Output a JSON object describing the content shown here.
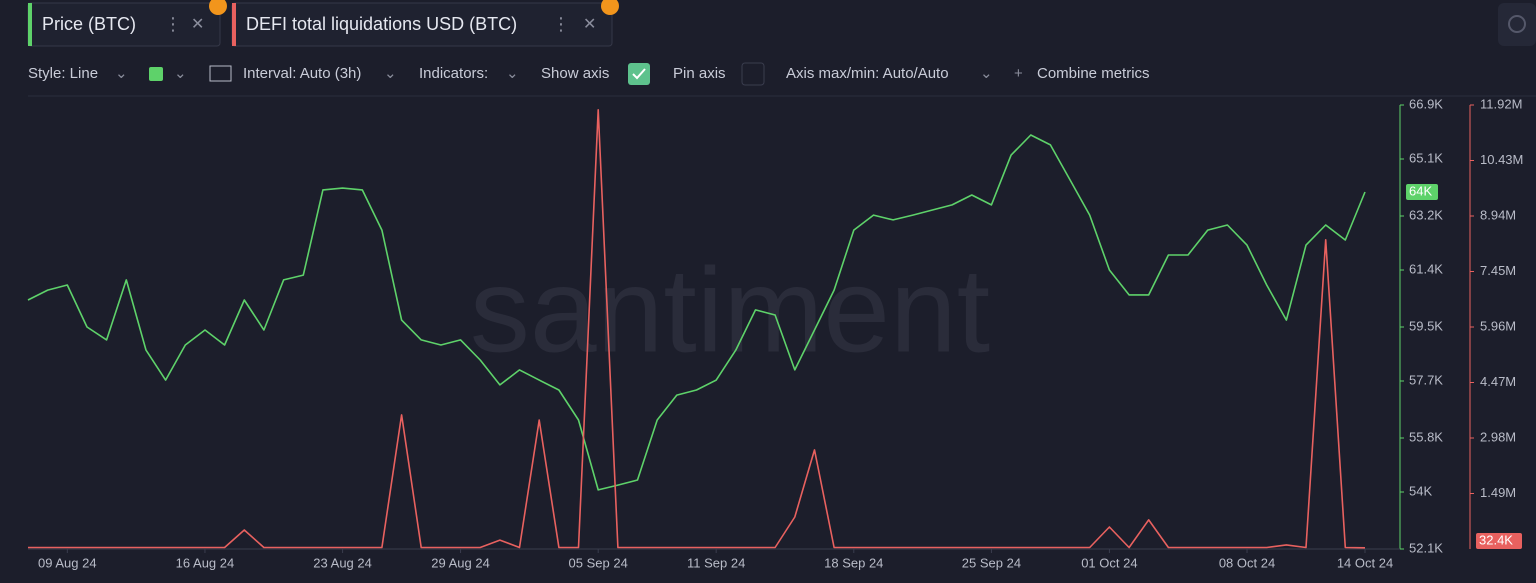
{
  "ui": {
    "toolbar": {
      "style": "Style: Line",
      "interval": "Interval: Auto (3h)",
      "indicators": "Indicators:",
      "show_axis": "Show axis",
      "pin_axis": "Pin axis",
      "axis_maxmin": "Axis max/min: Auto/Auto",
      "combine": "Combine metrics"
    },
    "watermark": "santiment"
  },
  "chart_data": {
    "type": "line",
    "x": [
      "2024-08-07",
      "2024-08-08",
      "2024-08-09",
      "2024-08-10",
      "2024-08-11",
      "2024-08-12",
      "2024-08-13",
      "2024-08-14",
      "2024-08-15",
      "2024-08-16",
      "2024-08-17",
      "2024-08-18",
      "2024-08-19",
      "2024-08-20",
      "2024-08-21",
      "2024-08-22",
      "2024-08-23",
      "2024-08-24",
      "2024-08-25",
      "2024-08-26",
      "2024-08-27",
      "2024-08-28",
      "2024-08-29",
      "2024-08-30",
      "2024-08-31",
      "2024-09-01",
      "2024-09-02",
      "2024-09-03",
      "2024-09-04",
      "2024-09-05",
      "2024-09-06",
      "2024-09-07",
      "2024-09-08",
      "2024-09-09",
      "2024-09-10",
      "2024-09-11",
      "2024-09-12",
      "2024-09-13",
      "2024-09-14",
      "2024-09-15",
      "2024-09-16",
      "2024-09-17",
      "2024-09-18",
      "2024-09-19",
      "2024-09-20",
      "2024-09-21",
      "2024-09-22",
      "2024-09-23",
      "2024-09-24",
      "2024-09-25",
      "2024-09-26",
      "2024-09-27",
      "2024-09-28",
      "2024-09-29",
      "2024-09-30",
      "2024-10-01",
      "2024-10-02",
      "2024-10-03",
      "2024-10-04",
      "2024-10-05",
      "2024-10-06",
      "2024-10-07",
      "2024-10-08",
      "2024-10-09",
      "2024-10-10",
      "2024-10-11",
      "2024-10-12",
      "2024-10-13",
      "2024-10-14"
    ],
    "xlim": [
      "2024-08-07",
      "2024-10-14"
    ],
    "xticks": [
      {
        "value": "2024-08-09",
        "label": "09 Aug 24"
      },
      {
        "value": "2024-08-16",
        "label": "16 Aug 24"
      },
      {
        "value": "2024-08-23",
        "label": "23 Aug 24"
      },
      {
        "value": "2024-08-29",
        "label": "29 Aug 24"
      },
      {
        "value": "2024-09-05",
        "label": "05 Sep 24"
      },
      {
        "value": "2024-09-11",
        "label": "11 Sep 24"
      },
      {
        "value": "2024-09-18",
        "label": "18 Sep 24"
      },
      {
        "value": "2024-09-25",
        "label": "25 Sep 24"
      },
      {
        "value": "2024-10-01",
        "label": "01 Oct 24"
      },
      {
        "value": "2024-10-08",
        "label": "08 Oct 24"
      },
      {
        "value": "2024-10-14",
        "label": "14 Oct 24"
      }
    ],
    "ylim": [
      52100,
      66900
    ],
    "yticks": [
      {
        "value": 52100,
        "label": "52.1K"
      },
      {
        "value": 54000,
        "label": "54K"
      },
      {
        "value": 55800,
        "label": "55.8K"
      },
      {
        "value": 57700,
        "label": "57.7K"
      },
      {
        "value": 59500,
        "label": "59.5K"
      },
      {
        "value": 61400,
        "label": "61.4K"
      },
      {
        "value": 63200,
        "label": "63.2K"
      },
      {
        "value": 65100,
        "label": "65.1K"
      },
      {
        "value": 66900,
        "label": "66.9K"
      }
    ],
    "y2lim": [
      0,
      11920000
    ],
    "y2ticks": [
      {
        "value": 1490000,
        "label": "1.49M"
      },
      {
        "value": 2980000,
        "label": "2.98M"
      },
      {
        "value": 4470000,
        "label": "4.47M"
      },
      {
        "value": 5960000,
        "label": "5.96M"
      },
      {
        "value": 7450000,
        "label": "7.45M"
      },
      {
        "value": 8940000,
        "label": "8.94M"
      },
      {
        "value": 10430000,
        "label": "10.43M"
      },
      {
        "value": 11920000,
        "label": "11.92M"
      }
    ],
    "series": [
      {
        "name": "Price (BTC)",
        "color": "#5ed26a",
        "axis": "y",
        "values": [
          60400,
          60730,
          60900,
          59500,
          59070,
          61070,
          58730,
          57730,
          58900,
          59400,
          58900,
          60400,
          59400,
          61070,
          61230,
          64070,
          64130,
          64070,
          62730,
          59730,
          59070,
          58900,
          59070,
          58400,
          57570,
          58070,
          57730,
          57400,
          56400,
          54070,
          54230,
          54400,
          56400,
          57230,
          57400,
          57730,
          58730,
          60070,
          59900,
          58070,
          59400,
          60730,
          62730,
          63230,
          63070,
          63230,
          63400,
          63570,
          63900,
          63570,
          65230,
          65900,
          65570,
          64400,
          63230,
          61400,
          60570,
          60570,
          61900,
          61900,
          62730,
          62900,
          62230,
          60900,
          59730,
          62230,
          62900,
          62400,
          64000
        ],
        "current": {
          "value": 64000,
          "label": "64K"
        }
      },
      {
        "name": "DEFI total liquidations USD (BTC)",
        "color": "#e8615f",
        "axis": "y2",
        "values": [
          40000,
          40000,
          40000,
          40000,
          40000,
          40000,
          40000,
          40000,
          40000,
          40000,
          40000,
          510000,
          40000,
          40000,
          40000,
          40000,
          40000,
          40000,
          40000,
          3600000,
          40000,
          40000,
          40000,
          40000,
          240000,
          40000,
          3460000,
          40000,
          40000,
          11790000,
          40000,
          40000,
          40000,
          40000,
          40000,
          40000,
          40000,
          40000,
          40000,
          860000,
          2660000,
          40000,
          40000,
          40000,
          40000,
          40000,
          40000,
          40000,
          40000,
          40000,
          40000,
          40000,
          40000,
          40000,
          40000,
          590000,
          40000,
          780000,
          40000,
          40000,
          40000,
          40000,
          40000,
          40000,
          110000,
          40000,
          8300000,
          40000,
          32400
        ],
        "current": {
          "value": 32400,
          "label": "32.4K"
        }
      }
    ]
  }
}
